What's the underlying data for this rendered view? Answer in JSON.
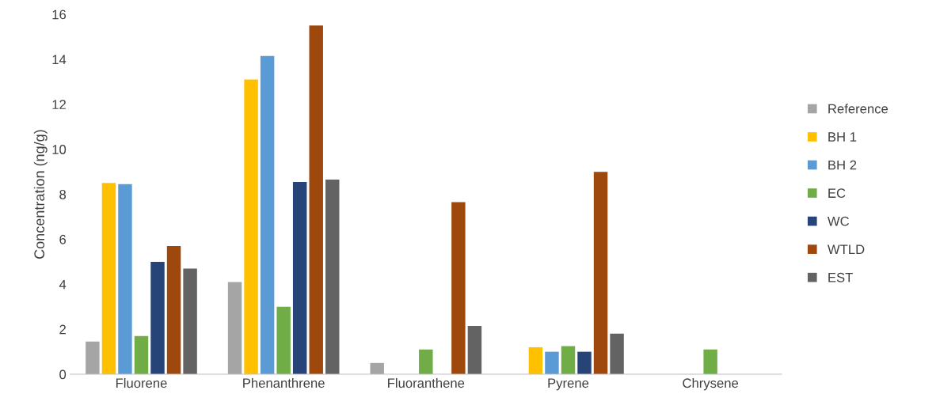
{
  "chart_data": {
    "type": "bar",
    "ylabel": "Concentration (ng/g)",
    "categories": [
      "Fluorene",
      "Phenanthrene",
      "Fluoranthene",
      "Pyrene",
      "Chrysene"
    ],
    "series": [
      {
        "name": "Reference",
        "color": "#a5a5a5",
        "values": [
          1.45,
          4.1,
          0.5,
          null,
          null
        ]
      },
      {
        "name": "BH 1",
        "color": "#ffc000",
        "values": [
          8.5,
          13.1,
          null,
          1.2,
          null
        ]
      },
      {
        "name": "BH 2",
        "color": "#5b9bd5",
        "values": [
          8.45,
          14.15,
          null,
          1.0,
          null
        ]
      },
      {
        "name": "EC",
        "color": "#70ad47",
        "values": [
          1.7,
          3.0,
          1.1,
          1.25,
          1.1
        ]
      },
      {
        "name": "WC",
        "color": "#264478",
        "values": [
          5.0,
          8.55,
          null,
          1.0,
          null
        ]
      },
      {
        "name": "WTLD",
        "color": "#9e480e",
        "values": [
          5.7,
          15.5,
          7.65,
          9.0,
          null
        ]
      },
      {
        "name": "EST",
        "color": "#636363",
        "values": [
          4.7,
          8.65,
          2.15,
          1.8,
          null
        ]
      }
    ],
    "ylim": [
      0,
      16
    ],
    "yticks": [
      0,
      2,
      4,
      6,
      8,
      10,
      12,
      14,
      16
    ],
    "grid": false,
    "legend": "right"
  }
}
